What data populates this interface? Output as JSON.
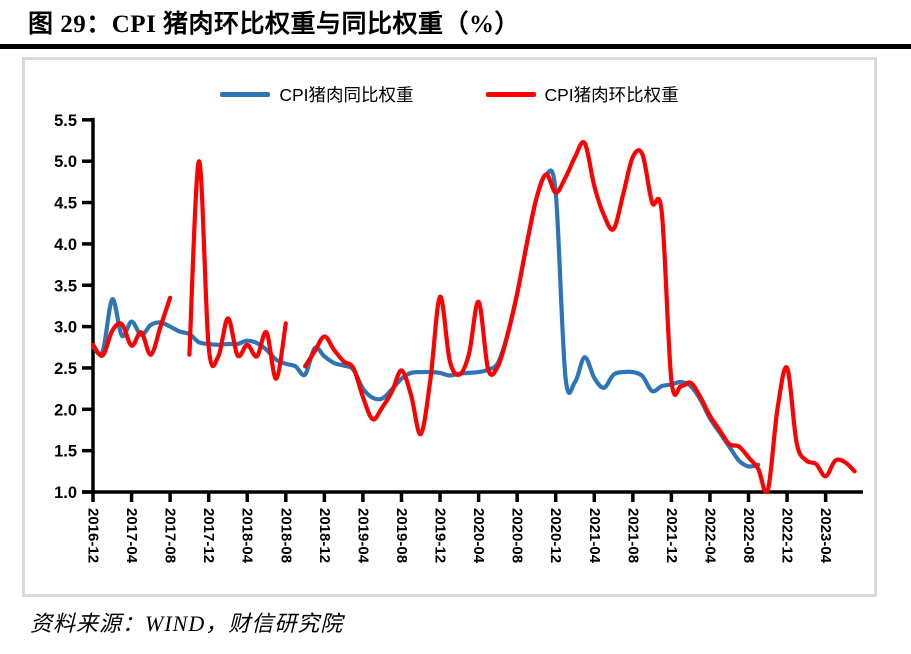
{
  "header": {
    "title": "图 29：CPI 猪肉环比权重与同比权重（%）"
  },
  "footer": {
    "source": "资料来源：WIND，财信研究院"
  },
  "legend": [
    {
      "label": "CPI猪肉同比权重",
      "color": "#2E75B6"
    },
    {
      "label": "CPI猪肉环比权重",
      "color": "#FF0000"
    }
  ],
  "colors": {
    "axis": "#000000",
    "frame_border": "#d9d9d9",
    "rule": "#000000"
  },
  "chart_data": {
    "type": "line",
    "title": "图 29：CPI 猪肉环比权重与同比权重（%）",
    "xlabel": "",
    "ylabel": "",
    "ylim": [
      1.0,
      5.5
    ],
    "y_tick_step": 0.5,
    "y_tick_labels": [
      "5.5",
      "5.0",
      "4.5",
      "4.0",
      "3.5",
      "3.0",
      "2.5",
      "2.0",
      "1.5",
      "1.0"
    ],
    "grid": false,
    "legend_position": "top",
    "x_tick_every": 4,
    "x_tick_labels": [
      "2016-12",
      "2017-04",
      "2017-08",
      "2017-12",
      "2018-04",
      "2018-08",
      "2018-12",
      "2019-04",
      "2019-08",
      "2019-12",
      "2020-04",
      "2020-08",
      "2020-12",
      "2021-04",
      "2021-08",
      "2021-12",
      "2022-04",
      "2022-08",
      "2022-12",
      "2023-04"
    ],
    "x": [
      "2016-12",
      "2017-01",
      "2017-02",
      "2017-03",
      "2017-04",
      "2017-05",
      "2017-06",
      "2017-07",
      "2017-08",
      "2017-09",
      "2017-10",
      "2017-11",
      "2017-12",
      "2018-01",
      "2018-02",
      "2018-03",
      "2018-04",
      "2018-05",
      "2018-06",
      "2018-07",
      "2018-08",
      "2018-09",
      "2018-10",
      "2018-11",
      "2018-12",
      "2019-01",
      "2019-02",
      "2019-03",
      "2019-04",
      "2019-05",
      "2019-06",
      "2019-07",
      "2019-08",
      "2019-09",
      "2019-10",
      "2019-11",
      "2019-12",
      "2020-01",
      "2020-02",
      "2020-03",
      "2020-04",
      "2020-05",
      "2020-06",
      "2020-07",
      "2020-08",
      "2020-09",
      "2020-10",
      "2020-11",
      "2020-12",
      "2021-01",
      "2021-02",
      "2021-03",
      "2021-04",
      "2021-05",
      "2021-06",
      "2021-07",
      "2021-08",
      "2021-09",
      "2021-10",
      "2021-11",
      "2021-12",
      "2022-01",
      "2022-02",
      "2022-03",
      "2022-04",
      "2022-05",
      "2022-06",
      "2022-07",
      "2022-08",
      "2022-09",
      "2022-10",
      "2022-11",
      "2022-12",
      "2023-01",
      "2023-02",
      "2023-03",
      "2023-04",
      "2023-05",
      "2023-06",
      "2023-07"
    ],
    "series": [
      {
        "name": "CPI猪肉同比权重",
        "color": "#2E75B6",
        "values": [
          2.76,
          2.7,
          3.33,
          2.89,
          3.06,
          2.9,
          3.02,
          3.05,
          3.0,
          2.94,
          2.91,
          2.81,
          2.79,
          2.78,
          2.79,
          2.79,
          2.83,
          2.8,
          2.72,
          2.6,
          2.55,
          2.52,
          2.42,
          2.74,
          2.64,
          2.56,
          2.53,
          2.48,
          2.25,
          2.14,
          2.13,
          2.24,
          2.37,
          2.44,
          2.45,
          2.45,
          2.44,
          2.41,
          2.43,
          2.44,
          2.45,
          2.48,
          2.56,
          2.9,
          3.4,
          4.0,
          4.55,
          4.84,
          4.62,
          2.4,
          2.33,
          2.63,
          2.38,
          2.26,
          2.42,
          2.45,
          2.45,
          2.4,
          2.22,
          2.28,
          2.3,
          2.33,
          2.28,
          2.12,
          1.89,
          1.72,
          1.55,
          1.38,
          1.31,
          1.33,
          null,
          null,
          null,
          null,
          null,
          null,
          null,
          null,
          null,
          null
        ]
      },
      {
        "name": "CPI猪肉环比权重",
        "color": "#FF0000",
        "values": [
          2.78,
          2.65,
          2.95,
          3.03,
          2.77,
          2.93,
          2.66,
          3.0,
          3.35,
          null,
          2.66,
          5.0,
          2.75,
          2.64,
          3.1,
          2.65,
          2.78,
          2.64,
          2.93,
          2.37,
          3.04,
          null,
          2.52,
          2.7,
          2.88,
          2.72,
          2.58,
          2.5,
          2.15,
          1.88,
          2.02,
          2.21,
          2.47,
          2.17,
          1.7,
          2.36,
          3.36,
          2.59,
          2.42,
          2.67,
          3.3,
          2.48,
          2.52,
          2.9,
          3.4,
          4.0,
          4.55,
          4.84,
          4.62,
          4.8,
          5.05,
          5.22,
          4.7,
          4.35,
          4.18,
          4.6,
          5.05,
          5.08,
          4.5,
          4.38,
          2.35,
          2.28,
          2.32,
          2.15,
          1.92,
          1.75,
          1.58,
          1.55,
          1.42,
          1.28,
          1.02,
          2.0,
          2.5,
          1.59,
          1.38,
          1.34,
          1.19,
          1.38,
          1.36,
          1.25
        ]
      }
    ]
  }
}
